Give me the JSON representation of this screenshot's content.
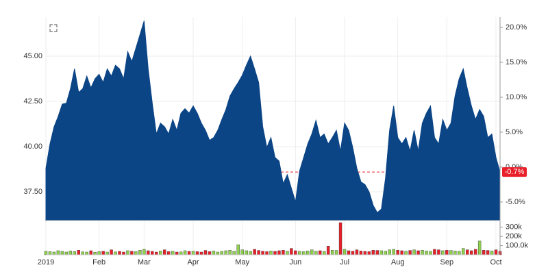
{
  "chart_data": {
    "type": "area",
    "values": [
      38.8,
      40.15,
      41.1,
      41.67,
      42.35,
      42.4,
      43.2,
      44.3,
      43.0,
      43.2,
      43.9,
      43.25,
      43.75,
      44.0,
      43.55,
      44.3,
      43.9,
      44.5,
      44.3,
      43.75,
      45.25,
      44.7,
      45.45,
      46.2,
      46.95,
      44.3,
      42.4,
      40.7,
      41.3,
      41.1,
      40.7,
      41.5,
      40.9,
      41.85,
      42.1,
      41.85,
      42.25,
      41.85,
      41.3,
      40.9,
      40.35,
      40.5,
      40.9,
      41.5,
      42.05,
      42.8,
      43.2,
      43.55,
      43.95,
      44.5,
      45.0,
      44.3,
      43.55,
      41.1,
      39.95,
      40.5,
      39.4,
      39.2,
      37.95,
      38.45,
      37.7,
      36.95,
      38.65,
      39.4,
      40.15,
      40.7,
      41.45,
      40.5,
      40.7,
      40.15,
      40.5,
      40.9,
      39.75,
      41.3,
      40.9,
      39.95,
      38.8,
      38.05,
      37.9,
      37.5,
      36.75,
      36.35,
      36.55,
      38.25,
      40.9,
      42.25,
      40.5,
      40.15,
      40.5,
      39.75,
      40.9,
      39.75,
      41.3,
      41.85,
      42.25,
      40.5,
      40.15,
      41.5,
      40.9,
      41.3,
      42.8,
      43.75,
      44.3,
      43.2,
      42.25,
      41.5,
      42.05,
      41.67,
      40.5,
      40.7,
      39.4,
      38.59
    ],
    "color": "#0b4586",
    "xlim": [
      0,
      111
    ],
    "xticks": [
      {
        "value": 0,
        "label": "2019"
      },
      {
        "value": 13,
        "label": "Feb"
      },
      {
        "value": 24,
        "label": "Mar"
      },
      {
        "value": 36,
        "label": "Apr"
      },
      {
        "value": 48,
        "label": "May"
      },
      {
        "value": 61,
        "label": "Jun"
      },
      {
        "value": 73,
        "label": "Jul"
      },
      {
        "value": 86,
        "label": "Aug"
      },
      {
        "value": 98,
        "label": "Sep"
      },
      {
        "value": 110,
        "label": "Oct"
      }
    ],
    "ylim": [
      35.91,
      47.16
    ],
    "yticks": [
      {
        "value": 37.5,
        "label": "37.50"
      },
      {
        "value": 40,
        "label": "40.00"
      },
      {
        "value": 42.5,
        "label": "42.50"
      },
      {
        "value": 45,
        "label": "45.00"
      }
    ],
    "y2lim": [
      -7.65,
      21.47
    ],
    "y2ticks": [
      {
        "value": -5,
        "label": "-5.0%"
      },
      {
        "value": 0,
        "label": "0.0%"
      },
      {
        "value": 5,
        "label": "5.0%"
      },
      {
        "value": 10,
        "label": "10.0%"
      },
      {
        "value": 15,
        "label": "15.0%"
      },
      {
        "value": 20,
        "label": "20.0%"
      }
    ],
    "annotation": {
      "value": -0.7,
      "label": "-0.7%",
      "color": "#e8202a"
    },
    "grid": true,
    "volume": {
      "values": [
        40,
        35,
        30,
        45,
        38,
        30,
        42,
        35,
        50,
        33,
        30,
        45,
        28,
        35,
        40,
        30,
        55,
        32,
        38,
        30,
        45,
        40,
        35,
        50,
        60,
        45,
        38,
        30,
        42,
        55,
        35,
        40,
        30,
        32,
        45,
        38,
        40,
        35,
        30,
        48,
        35,
        42,
        30,
        38,
        45,
        50,
        40,
        110,
        55,
        45,
        38,
        60,
        48,
        40,
        35,
        42,
        38,
        45,
        50,
        40,
        70,
        45,
        38,
        35,
        42,
        55,
        40,
        45,
        38,
        95,
        50,
        48,
        350,
        60,
        45,
        40,
        55,
        42,
        38,
        35,
        50,
        48,
        45,
        40,
        55,
        60,
        50,
        45,
        40,
        48,
        55,
        45,
        50,
        42,
        38,
        60,
        55,
        45,
        50,
        48,
        42,
        40,
        70,
        55,
        45,
        60,
        150,
        50,
        48,
        42,
        55,
        40
      ],
      "ylim": [
        0,
        350
      ],
      "yticks": [
        {
          "value": 100,
          "label": "100.0k"
        },
        {
          "value": 200,
          "label": "200k"
        },
        {
          "value": 300,
          "label": "300k"
        }
      ],
      "up_color": "#8fd14f",
      "down_color": "#e8202a"
    }
  }
}
